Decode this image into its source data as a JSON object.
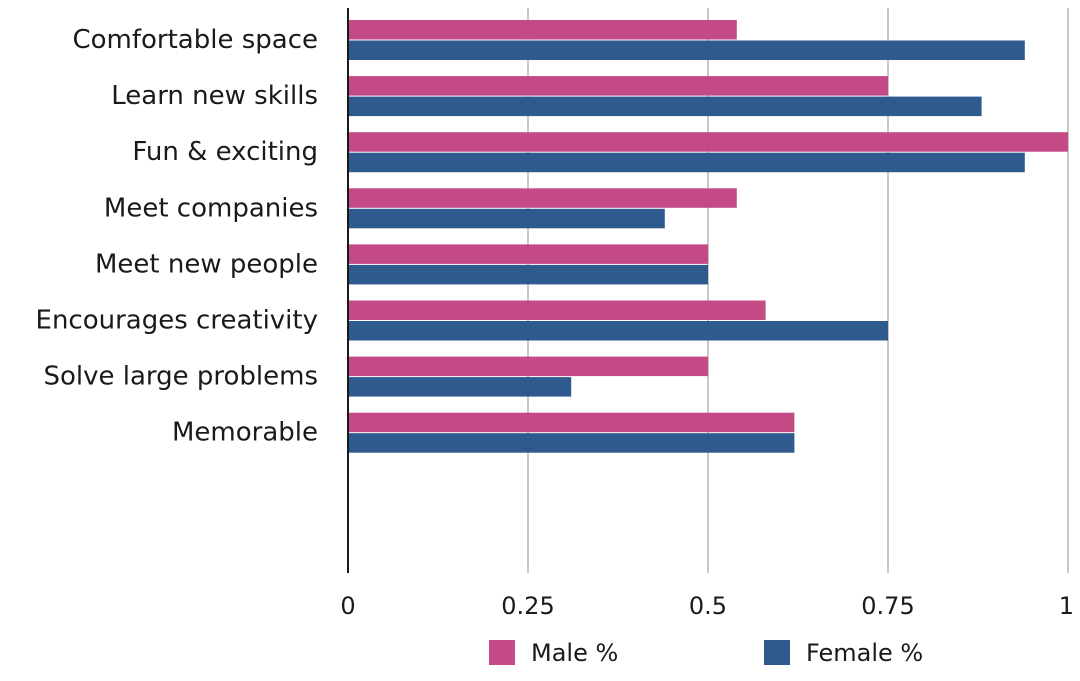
{
  "chart_data": {
    "type": "bar",
    "orientation": "horizontal",
    "categories": [
      "Comfortable space",
      "Learn new skills",
      "Fun & exciting",
      "Meet companies",
      "Meet new people",
      "Encourages creativity",
      "Solve large problems",
      "Memorable"
    ],
    "series": [
      {
        "name": "Male %",
        "color": "#c44a85",
        "values": [
          0.54,
          0.75,
          1.0,
          0.54,
          0.5,
          0.58,
          0.5,
          0.62
        ]
      },
      {
        "name": "Female %",
        "color": "#2e5a8e",
        "values": [
          0.94,
          0.88,
          0.94,
          0.44,
          0.5,
          0.75,
          0.31,
          0.62
        ]
      }
    ],
    "xlim": [
      0,
      1
    ],
    "xticks": [
      "0",
      "0.25",
      "0.5",
      "0.75",
      "1"
    ],
    "xtick_values": [
      0,
      0.25,
      0.5,
      0.75,
      1
    ],
    "grid": true,
    "legend_position": "bottom"
  }
}
